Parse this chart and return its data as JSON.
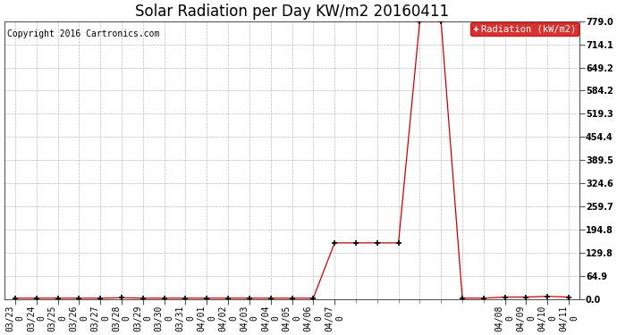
{
  "title": "Solar Radiation per Day KW/m2 20160411",
  "copyright": "Copyright 2016 Cartronics.com",
  "legend_label": "Radiation (kW/m2)",
  "background_color": "#ffffff",
  "plot_bg_color": "#ffffff",
  "grid_color": "#bbbbbb",
  "line_color": "#cc0000",
  "marker_color": "#000000",
  "ylim": [
    0.0,
    779.0
  ],
  "yticks": [
    0.0,
    64.9,
    129.8,
    194.8,
    259.7,
    324.6,
    389.5,
    454.4,
    519.3,
    584.2,
    649.2,
    714.1,
    779.0
  ],
  "ytick_labels": [
    "0.0",
    "64.9",
    "129.8",
    "194.8",
    "259.7",
    "324.6",
    "389.5",
    "454.4",
    "519.3",
    "584.2",
    "649.2",
    "714.1",
    "779.0"
  ],
  "x_indices": [
    0,
    1,
    2,
    3,
    4,
    5,
    6,
    7,
    8,
    9,
    10,
    11,
    12,
    13,
    14,
    15,
    16,
    17,
    18,
    19,
    20,
    21,
    22,
    23,
    24,
    25,
    26
  ],
  "values": [
    2,
    2,
    2,
    2,
    2,
    3,
    2,
    2,
    2,
    2,
    2,
    2,
    2,
    2,
    2,
    157,
    157,
    157,
    157,
    779,
    779,
    2,
    2,
    5,
    5,
    7,
    5
  ],
  "shown_xtick_positions": [
    0,
    1,
    2,
    3,
    4,
    5,
    6,
    7,
    8,
    9,
    10,
    11,
    12,
    13,
    14,
    15,
    23,
    24,
    25,
    26
  ],
  "shown_xtick_labels": [
    "03/23\n0",
    "03/24\n0",
    "03/25\n0",
    "03/26\n0",
    "03/27\n0",
    "03/28\n0",
    "03/29\n0",
    "03/30\n0",
    "03/31\n0",
    "04/01\n0",
    "04/02\n0",
    "04/03\n0",
    "04/04\n0",
    "04/05\n0",
    "04/06\n0",
    "04/07\n0",
    "04/08\n0",
    "04/09\n0",
    "04/10\n0",
    "04/11\n0"
  ],
  "all_xtick_positions": [
    0,
    1,
    2,
    3,
    4,
    5,
    6,
    7,
    8,
    9,
    10,
    11,
    12,
    13,
    14,
    15,
    16,
    17,
    18,
    19,
    20,
    21,
    22,
    23,
    24,
    25,
    26
  ],
  "legend_box_color": "#cc0000",
  "legend_text_color": "#ffffff",
  "title_fontsize": 12,
  "tick_fontsize": 7,
  "copyright_fontsize": 7,
  "legend_fontsize": 7.5
}
